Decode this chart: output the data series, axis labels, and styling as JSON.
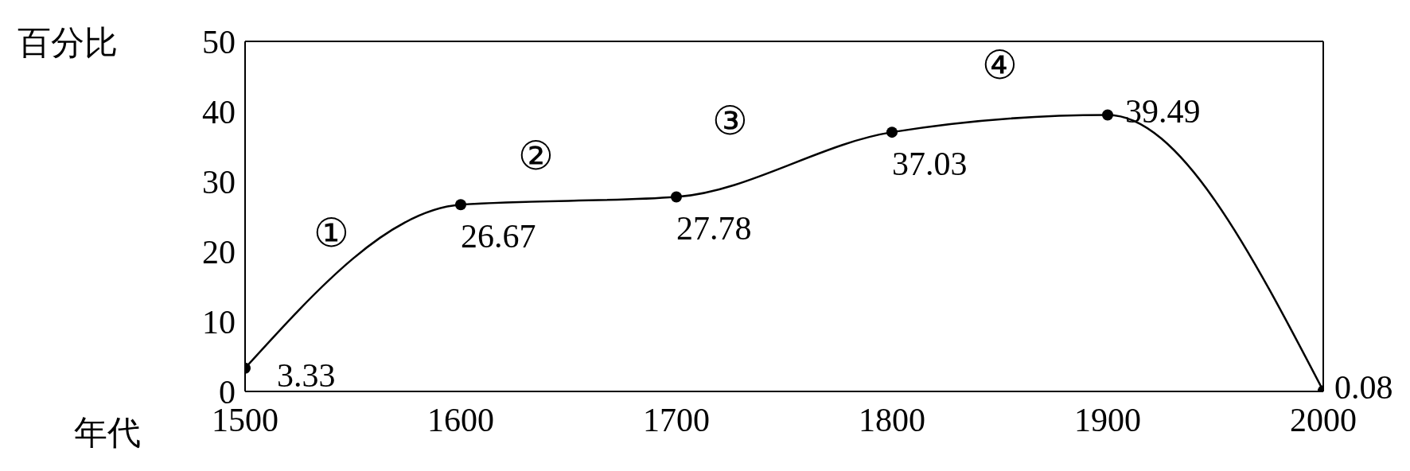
{
  "chart_data": {
    "type": "line",
    "xlabel": "年代",
    "ylabel": "百分比",
    "x": [
      1500,
      1600,
      1700,
      1800,
      1900,
      2000
    ],
    "series": [
      {
        "color": "#000000",
        "values": [
          3.33,
          26.67,
          27.78,
          37.03,
          39.49,
          0.08
        ]
      }
    ],
    "xlim": [
      1500,
      2000
    ],
    "xticks": [
      1500,
      1600,
      1700,
      1800,
      1900,
      2000
    ],
    "ylim": [
      0,
      50
    ],
    "yticks": [
      0,
      10,
      20,
      30,
      40,
      50
    ],
    "data_labels": true,
    "marker": "circle",
    "line_style": "solid",
    "annotations": [
      "①",
      "②",
      "③",
      "④"
    ]
  }
}
